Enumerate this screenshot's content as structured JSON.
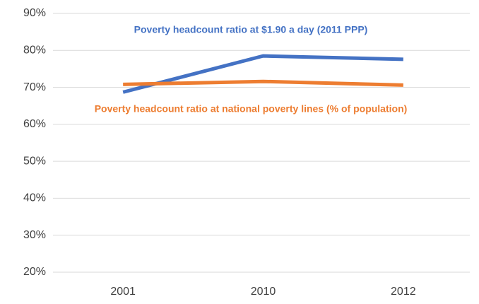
{
  "chart_data": {
    "type": "line",
    "categories": [
      "2001",
      "2010",
      "2012"
    ],
    "series": [
      {
        "name": "Poverty headcount ratio at $1.90 a day (2011 PPP)",
        "color": "#4472c4",
        "values": [
          68.7,
          78.5,
          77.6
        ]
      },
      {
        "name": "Poverty headcount ratio at national poverty lines (% of population)",
        "color": "#ed7d31",
        "values": [
          70.8,
          71.6,
          70.6
        ]
      }
    ],
    "ylim": [
      20,
      90
    ],
    "yticks": [
      {
        "value": 20,
        "label": "20%"
      },
      {
        "value": 30,
        "label": "30%"
      },
      {
        "value": 40,
        "label": "40%"
      },
      {
        "value": 50,
        "label": "50%"
      },
      {
        "value": 60,
        "label": "60%"
      },
      {
        "value": 70,
        "label": "70%"
      },
      {
        "value": 80,
        "label": "80%"
      },
      {
        "value": 90,
        "label": "90%"
      }
    ],
    "grid": true
  }
}
